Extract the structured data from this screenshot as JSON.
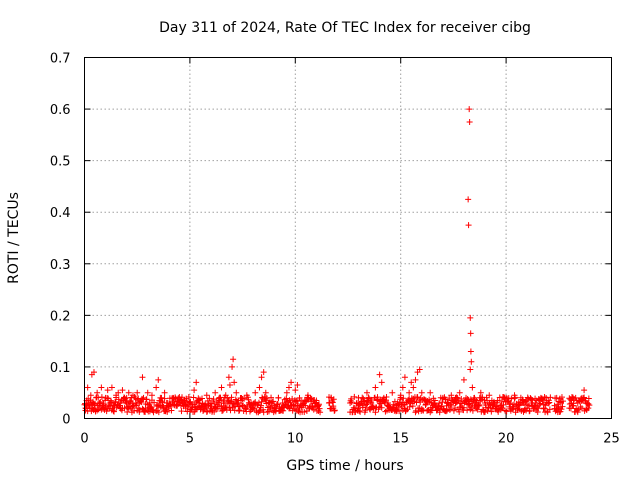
{
  "chart_data": {
    "type": "scatter",
    "title": "Day 311 of 2024, Rate Of TEC Index for receiver cibg",
    "xlabel": "GPS time / hours",
    "ylabel": "ROTI / TECUs",
    "xlim": [
      0,
      25
    ],
    "ylim": [
      0,
      0.7
    ],
    "xticks": [
      "0",
      "5",
      "10",
      "15",
      "20",
      "25"
    ],
    "yticks": [
      "0",
      "0.1",
      "0.2",
      "0.3",
      "0.4",
      "0.5",
      "0.6",
      "0.7"
    ],
    "grid": true,
    "marker": "+",
    "color": "#ff0000",
    "series": [
      {
        "name": "",
        "points": [
          [
            0.05,
            0.02
          ],
          [
            0.1,
            0.035
          ],
          [
            0.15,
            0.06
          ],
          [
            0.2,
            0.025
          ],
          [
            0.3,
            0.045
          ],
          [
            0.35,
            0.085
          ],
          [
            0.4,
            0.03
          ],
          [
            0.45,
            0.09
          ],
          [
            0.5,
            0.02
          ],
          [
            0.6,
            0.05
          ],
          [
            0.7,
            0.03
          ],
          [
            0.8,
            0.06
          ],
          [
            0.9,
            0.025
          ],
          [
            1.0,
            0.04
          ],
          [
            1.1,
            0.055
          ],
          [
            1.2,
            0.03
          ],
          [
            1.3,
            0.06
          ],
          [
            1.4,
            0.025
          ],
          [
            1.5,
            0.045
          ],
          [
            1.6,
            0.05
          ],
          [
            1.7,
            0.03
          ],
          [
            1.8,
            0.055
          ],
          [
            1.9,
            0.02
          ],
          [
            2.0,
            0.04
          ],
          [
            2.1,
            0.05
          ],
          [
            2.2,
            0.03
          ],
          [
            2.3,
            0.045
          ],
          [
            2.4,
            0.025
          ],
          [
            2.5,
            0.05
          ],
          [
            2.6,
            0.03
          ],
          [
            2.75,
            0.08
          ],
          [
            2.8,
            0.04
          ],
          [
            2.9,
            0.02
          ],
          [
            3.0,
            0.05
          ],
          [
            3.1,
            0.03
          ],
          [
            3.2,
            0.045
          ],
          [
            3.4,
            0.06
          ],
          [
            3.5,
            0.075
          ],
          [
            3.6,
            0.04
          ],
          [
            3.7,
            0.025
          ],
          [
            3.8,
            0.05
          ],
          [
            3.9,
            0.03
          ],
          [
            4.0,
            0.02
          ],
          [
            4.2,
            0.04
          ],
          [
            4.4,
            0.025
          ],
          [
            4.6,
            0.035
          ],
          [
            4.8,
            0.02
          ],
          [
            5.0,
            0.03
          ],
          [
            5.2,
            0.055
          ],
          [
            5.3,
            0.07
          ],
          [
            5.4,
            0.035
          ],
          [
            5.6,
            0.025
          ],
          [
            5.8,
            0.045
          ],
          [
            6.0,
            0.03
          ],
          [
            6.2,
            0.05
          ],
          [
            6.4,
            0.035
          ],
          [
            6.5,
            0.06
          ],
          [
            6.6,
            0.03
          ],
          [
            6.7,
            0.045
          ],
          [
            6.85,
            0.08
          ],
          [
            6.9,
            0.065
          ],
          [
            7.0,
            0.1
          ],
          [
            7.05,
            0.115
          ],
          [
            7.1,
            0.07
          ],
          [
            7.2,
            0.05
          ],
          [
            7.3,
            0.035
          ],
          [
            7.5,
            0.025
          ],
          [
            7.7,
            0.045
          ],
          [
            7.9,
            0.03
          ],
          [
            8.1,
            0.05
          ],
          [
            8.3,
            0.06
          ],
          [
            8.4,
            0.08
          ],
          [
            8.5,
            0.09
          ],
          [
            8.6,
            0.05
          ],
          [
            8.8,
            0.03
          ],
          [
            9.0,
            0.025
          ],
          [
            9.2,
            0.04
          ],
          [
            9.4,
            0.03
          ],
          [
            9.6,
            0.05
          ],
          [
            9.7,
            0.06
          ],
          [
            9.8,
            0.07
          ],
          [
            10.0,
            0.055
          ],
          [
            10.1,
            0.065
          ],
          [
            10.2,
            0.04
          ],
          [
            10.4,
            0.03
          ],
          [
            10.6,
            0.045
          ],
          [
            10.8,
            0.02
          ],
          [
            11.0,
            0.035
          ],
          [
            11.1,
            0.025
          ],
          [
            11.6,
            0.03
          ],
          [
            11.7,
            0.04
          ],
          [
            11.8,
            0.02
          ],
          [
            12.6,
            0.03
          ],
          [
            12.8,
            0.02
          ],
          [
            13.0,
            0.04
          ],
          [
            13.2,
            0.025
          ],
          [
            13.4,
            0.05
          ],
          [
            13.6,
            0.03
          ],
          [
            13.8,
            0.06
          ],
          [
            14.0,
            0.085
          ],
          [
            14.1,
            0.07
          ],
          [
            14.2,
            0.04
          ],
          [
            14.4,
            0.03
          ],
          [
            14.6,
            0.05
          ],
          [
            14.8,
            0.025
          ],
          [
            15.0,
            0.045
          ],
          [
            15.1,
            0.06
          ],
          [
            15.2,
            0.08
          ],
          [
            15.4,
            0.05
          ],
          [
            15.5,
            0.07
          ],
          [
            15.6,
            0.06
          ],
          [
            15.7,
            0.075
          ],
          [
            15.8,
            0.09
          ],
          [
            15.9,
            0.095
          ],
          [
            16.0,
            0.05
          ],
          [
            16.2,
            0.035
          ],
          [
            16.4,
            0.05
          ],
          [
            16.6,
            0.03
          ],
          [
            16.8,
            0.025
          ],
          [
            17.0,
            0.04
          ],
          [
            17.2,
            0.03
          ],
          [
            17.4,
            0.045
          ],
          [
            17.6,
            0.03
          ],
          [
            17.8,
            0.05
          ],
          [
            18.0,
            0.075
          ],
          [
            18.1,
            0.04
          ],
          [
            18.25,
            0.6
          ],
          [
            18.27,
            0.575
          ],
          [
            18.2,
            0.425
          ],
          [
            18.22,
            0.375
          ],
          [
            18.3,
            0.195
          ],
          [
            18.32,
            0.165
          ],
          [
            18.33,
            0.13
          ],
          [
            18.35,
            0.11
          ],
          [
            18.3,
            0.095
          ],
          [
            18.4,
            0.06
          ],
          [
            18.5,
            0.04
          ],
          [
            18.6,
            0.035
          ],
          [
            18.8,
            0.05
          ],
          [
            19.0,
            0.03
          ],
          [
            19.2,
            0.045
          ],
          [
            19.4,
            0.025
          ],
          [
            19.6,
            0.035
          ],
          [
            19.8,
            0.02
          ],
          [
            20.0,
            0.04
          ],
          [
            20.2,
            0.03
          ],
          [
            20.4,
            0.045
          ],
          [
            20.6,
            0.025
          ],
          [
            20.8,
            0.035
          ],
          [
            21.0,
            0.02
          ],
          [
            21.2,
            0.03
          ],
          [
            21.4,
            0.025
          ],
          [
            21.6,
            0.035
          ],
          [
            21.8,
            0.02
          ],
          [
            22.0,
            0.03
          ],
          [
            22.3,
            0.025
          ],
          [
            22.4,
            0.04
          ],
          [
            22.5,
            0.02
          ],
          [
            22.6,
            0.03
          ],
          [
            23.0,
            0.02
          ],
          [
            23.1,
            0.035
          ],
          [
            23.2,
            0.025
          ],
          [
            23.4,
            0.03
          ],
          [
            23.6,
            0.04
          ],
          [
            23.7,
            0.055
          ],
          [
            23.8,
            0.03
          ],
          [
            23.9,
            0.02
          ]
        ]
      }
    ]
  }
}
